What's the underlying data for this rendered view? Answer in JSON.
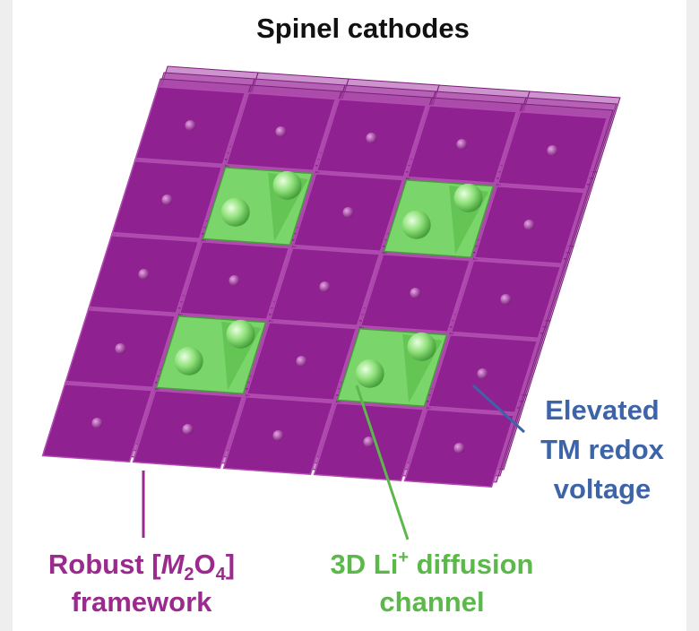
{
  "title": "Spinel cathodes",
  "labels": {
    "framework": {
      "line1": [
        "Robust [",
        "M",
        "2",
        "O",
        "4",
        "]"
      ],
      "line2": "framework"
    },
    "diffusion": {
      "line1": [
        "3D Li",
        "+",
        " diffusion"
      ],
      "line2": "channel"
    },
    "voltage": {
      "lines": [
        "Elevated",
        "TM redox",
        "voltage"
      ]
    }
  }
}
